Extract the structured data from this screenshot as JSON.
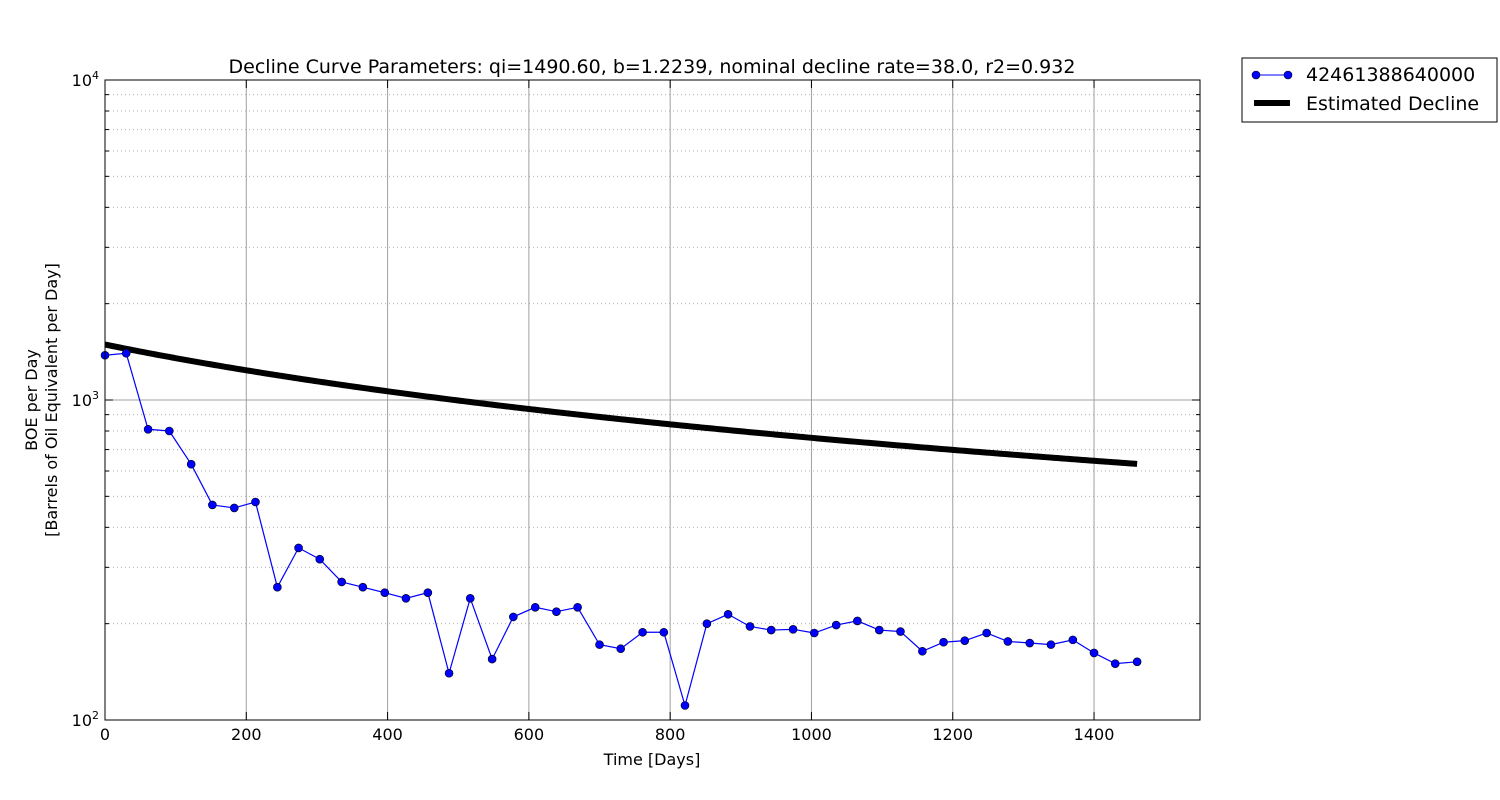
{
  "chart_data": {
    "type": "line",
    "title": "Decline Curve Parameters: qi=1490.60, b=1.2239, nominal decline rate=38.0, r2=0.932",
    "xlabel": "Time [Days]",
    "ylabel_line1": "BOE per Day",
    "ylabel_line2": "[Barrels of Oil Equivalent per Day]",
    "xlim": [
      0,
      1550
    ],
    "ylim": [
      100,
      10000
    ],
    "yscale": "log",
    "grid": true,
    "legend_position": "outside-top-right",
    "x_ticks": [
      {
        "value": 0,
        "label": "0"
      },
      {
        "value": 200,
        "label": "200"
      },
      {
        "value": 400,
        "label": "400"
      },
      {
        "value": 600,
        "label": "600"
      },
      {
        "value": 800,
        "label": "800"
      },
      {
        "value": 1000,
        "label": "1000"
      },
      {
        "value": 1200,
        "label": "1200"
      },
      {
        "value": 1400,
        "label": "1400"
      }
    ],
    "y_ticks": [
      {
        "value": 100,
        "base": "10",
        "exp": "2"
      },
      {
        "value": 1000,
        "base": "10",
        "exp": "3"
      },
      {
        "value": 10000,
        "base": "10",
        "exp": "4"
      }
    ],
    "series": [
      {
        "name": "42461388640000",
        "color": "#0000ff",
        "style": "line-markers",
        "x": [
          0,
          30,
          61,
          91,
          122,
          152,
          183,
          213,
          244,
          274,
          304,
          335,
          365,
          396,
          426,
          457,
          487,
          517,
          548,
          578,
          609,
          639,
          669,
          700,
          730,
          761,
          791,
          821,
          852,
          882,
          913,
          943,
          974,
          1004,
          1035,
          1065,
          1096,
          1126,
          1157,
          1187,
          1217,
          1248,
          1278,
          1309,
          1339,
          1370,
          1400,
          1430,
          1461
        ],
        "y": [
          1380,
          1400,
          810,
          800,
          630,
          470,
          460,
          480,
          260,
          345,
          318,
          270,
          260,
          250,
          240,
          250,
          140,
          240,
          155,
          210,
          225,
          218,
          225,
          172,
          167,
          188,
          188,
          111,
          200,
          214,
          196,
          191,
          192,
          187,
          198,
          204,
          191,
          189,
          164,
          175,
          177,
          187,
          176,
          174,
          172,
          178,
          162,
          150,
          152
        ]
      },
      {
        "name": "Estimated Decline",
        "color": "#000000",
        "style": "line",
        "qi": 1490.6,
        "b": 1.2239,
        "Di_per_year": 0.38,
        "x_start": 0,
        "x_end": 1461
      }
    ]
  }
}
